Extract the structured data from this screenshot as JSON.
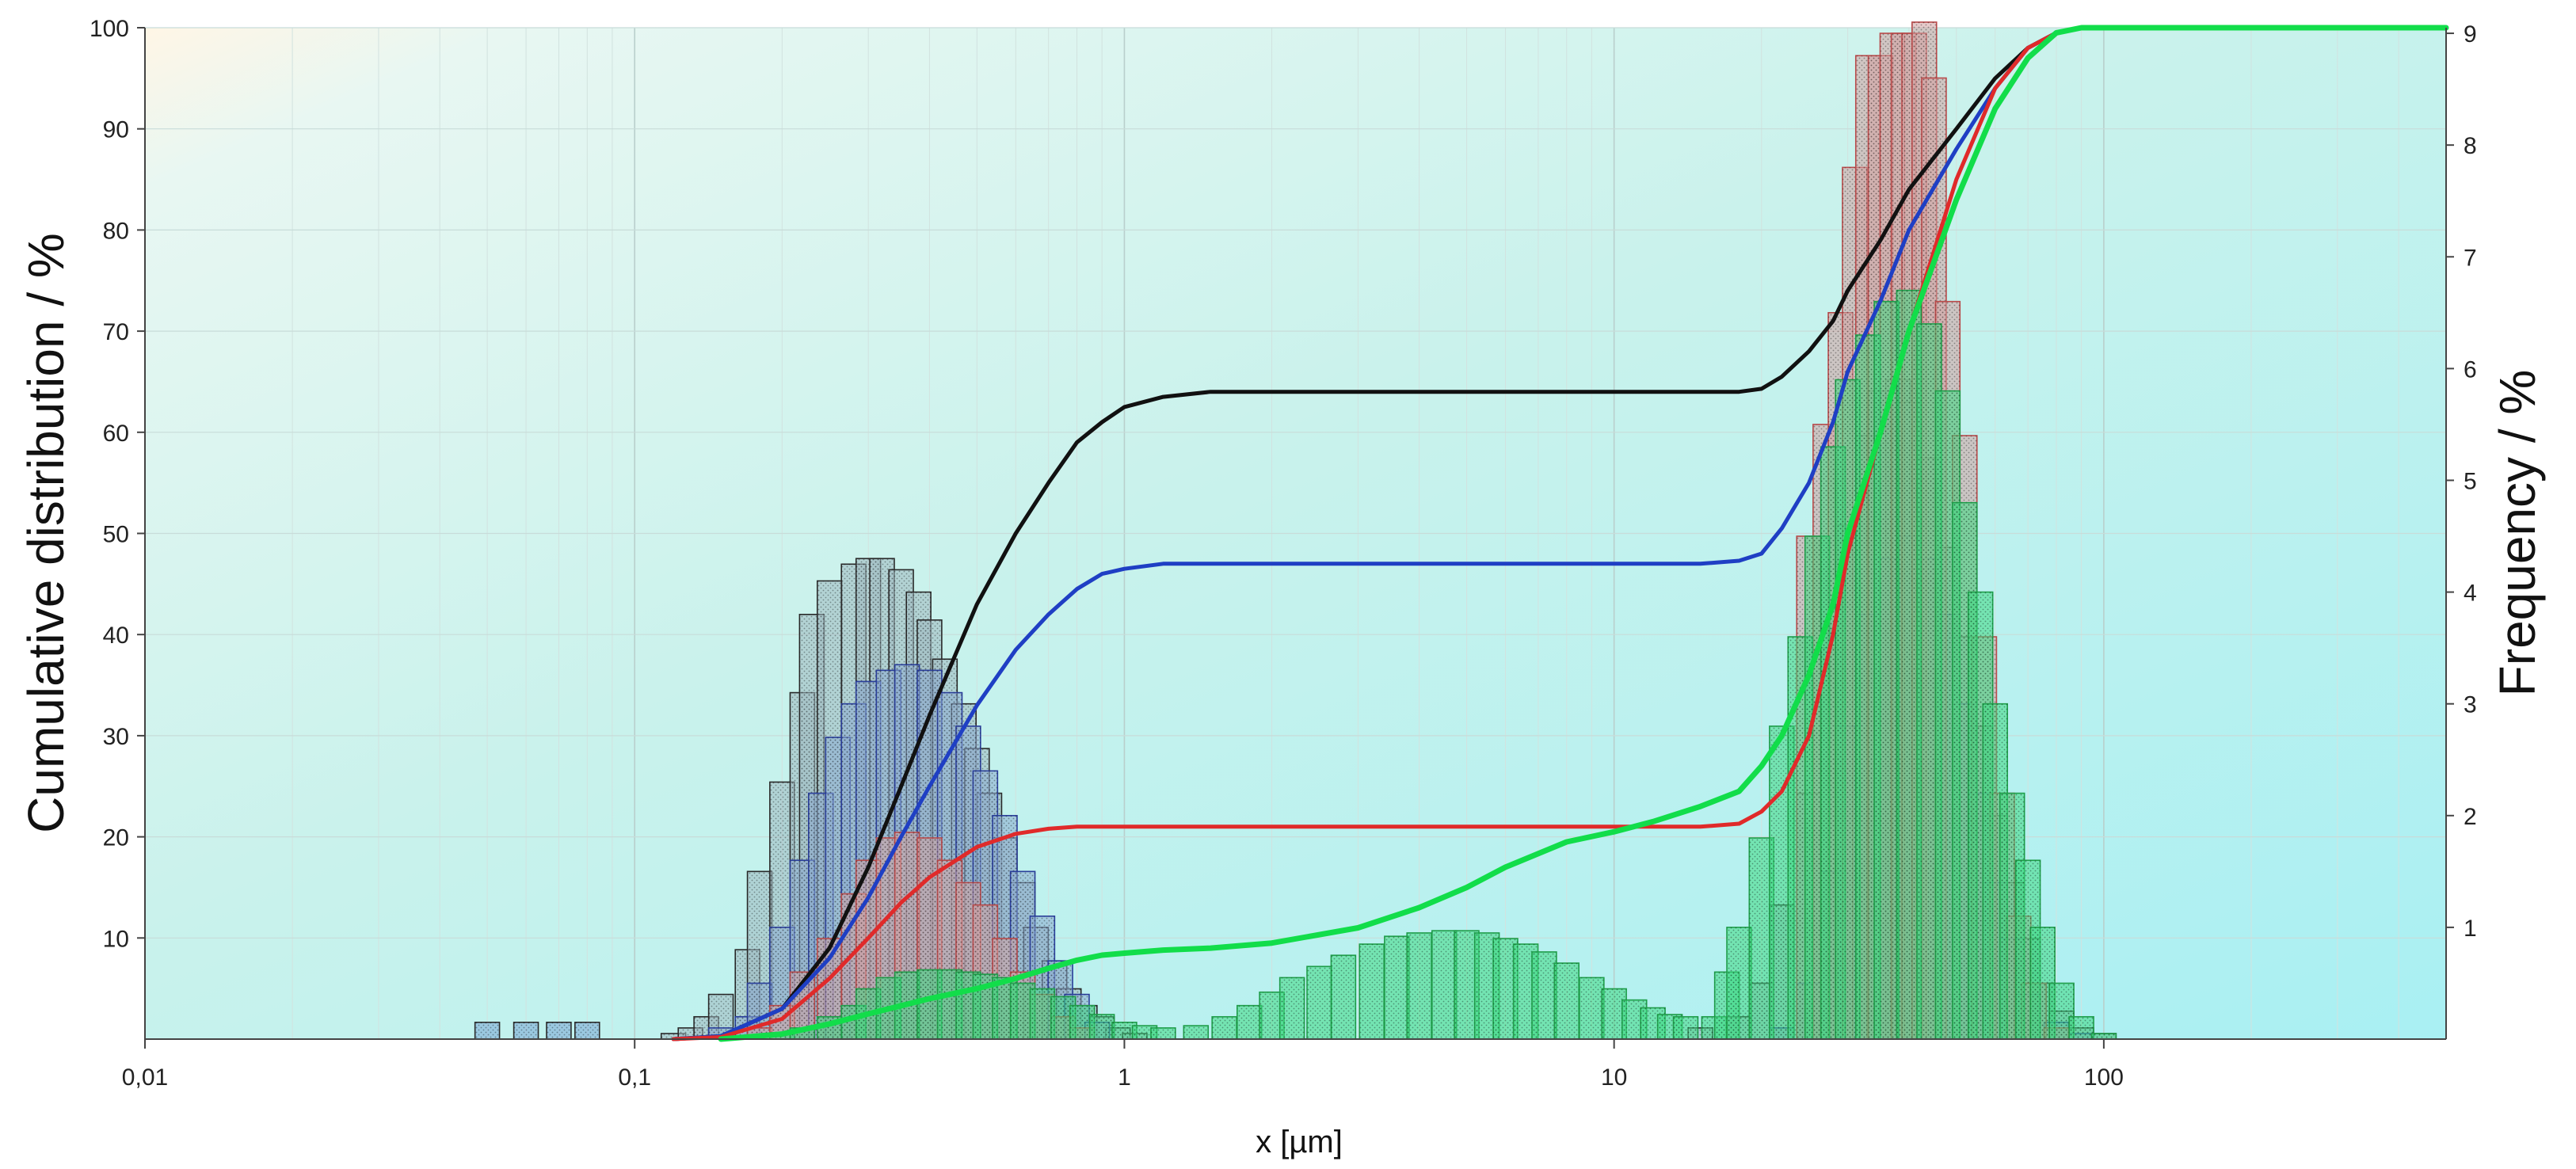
{
  "chart_data": {
    "type": "histogram+line",
    "xscale": "log",
    "xlim": [
      0.01,
      500
    ],
    "ylim_left": [
      0,
      100
    ],
    "ylim_right": [
      0,
      9.05
    ],
    "xlabel": "x [µm]",
    "ylabel_left": "Cumulative distribution / %",
    "ylabel_right": "Frequency / %",
    "x_ticks": [
      {
        "v": 0.01,
        "label": "0,01"
      },
      {
        "v": 0.1,
        "label": "0,1"
      },
      {
        "v": 1,
        "label": "1"
      },
      {
        "v": 10,
        "label": "10"
      },
      {
        "v": 100,
        "label": "100"
      }
    ],
    "y_left_ticks": [
      "10",
      "20",
      "30",
      "40",
      "50",
      "60",
      "70",
      "80",
      "90",
      "100"
    ],
    "y_right_ticks": [
      "1",
      "2",
      "3",
      "4",
      "5",
      "6",
      "7",
      "8",
      "9"
    ],
    "histogram_bins_per_decade": 20,
    "frequency_series": [
      {
        "name": "black",
        "color": "#2a2a2a",
        "fill": "#9fb8c0",
        "x": [
          0.12,
          0.13,
          0.14,
          0.15,
          0.17,
          0.18,
          0.2,
          0.22,
          0.23,
          0.25,
          0.28,
          0.3,
          0.32,
          0.35,
          0.38,
          0.4,
          0.43,
          0.47,
          0.5,
          0.53,
          0.57,
          0.62,
          0.66,
          0.72,
          0.77,
          0.83,
          0.9,
          0.97,
          1.05,
          15,
          18,
          20,
          22,
          25,
          28,
          30,
          33,
          35,
          38,
          40,
          44,
          48,
          52,
          56,
          60,
          65,
          70,
          75,
          82,
          90,
          100
        ],
        "y": [
          0.05,
          0.1,
          0.2,
          0.4,
          0.8,
          1.5,
          2.3,
          3.1,
          3.8,
          4.1,
          4.25,
          4.3,
          4.3,
          4.2,
          4.0,
          3.75,
          3.4,
          3.0,
          2.6,
          2.2,
          1.8,
          1.4,
          1.0,
          0.7,
          0.45,
          0.3,
          0.2,
          0.1,
          0.05,
          0.1,
          0.2,
          0.5,
          1.2,
          2.2,
          3.5,
          4.6,
          5.4,
          5.8,
          5.9,
          5.7,
          5.2,
          4.4,
          3.6,
          2.8,
          2.0,
          1.4,
          0.9,
          0.5,
          0.25,
          0.1,
          0.05
        ]
      },
      {
        "name": "blue",
        "color": "#2a3e9a",
        "fill": "#8aa9cf",
        "x": [
          0.15,
          0.17,
          0.18,
          0.2,
          0.22,
          0.24,
          0.26,
          0.28,
          0.3,
          0.33,
          0.36,
          0.4,
          0.44,
          0.48,
          0.52,
          0.57,
          0.62,
          0.68,
          0.74,
          0.8,
          0.88,
          22,
          25,
          28,
          30,
          33,
          36,
          40,
          44,
          48,
          52,
          56,
          60,
          65,
          70,
          80,
          90
        ],
        "y": [
          0.1,
          0.2,
          0.5,
          1.0,
          1.6,
          2.2,
          2.7,
          3.0,
          3.2,
          3.3,
          3.35,
          3.3,
          3.1,
          2.8,
          2.4,
          2.0,
          1.5,
          1.1,
          0.7,
          0.4,
          0.15,
          0.1,
          0.5,
          1.5,
          2.8,
          3.8,
          4.3,
          4.5,
          4.3,
          3.8,
          3.0,
          2.2,
          1.4,
          0.9,
          0.4,
          0.15,
          0.05
        ]
      },
      {
        "name": "red",
        "color": "#b84a4a",
        "fill": "#d4a0a0",
        "x": [
          0.18,
          0.2,
          0.22,
          0.25,
          0.28,
          0.3,
          0.33,
          0.36,
          0.4,
          0.44,
          0.48,
          0.52,
          0.57,
          0.62,
          0.68,
          0.75,
          0.82,
          25,
          27,
          29,
          31,
          33,
          35,
          37,
          39,
          41,
          43,
          45,
          48,
          52,
          57,
          62,
          67,
          72,
          80
        ],
        "y": [
          0.1,
          0.3,
          0.6,
          0.9,
          1.3,
          1.6,
          1.8,
          1.85,
          1.8,
          1.6,
          1.4,
          1.2,
          0.9,
          0.6,
          0.4,
          0.2,
          0.1,
          4.5,
          5.5,
          6.5,
          7.8,
          8.8,
          8.8,
          9.0,
          9.0,
          9.0,
          9.1,
          8.6,
          6.6,
          5.4,
          3.6,
          2.2,
          1.1,
          0.5,
          0.1
        ]
      },
      {
        "name": "green",
        "color": "#1f9e4a",
        "fill": "#3dd880",
        "x": [
          0.2,
          0.22,
          0.25,
          0.28,
          0.3,
          0.33,
          0.36,
          0.4,
          0.44,
          0.48,
          0.52,
          0.57,
          0.62,
          0.68,
          0.75,
          0.82,
          0.9,
          1.0,
          1.1,
          1.2,
          1.4,
          1.6,
          1.8,
          2.0,
          2.2,
          2.5,
          2.8,
          3.2,
          3.6,
          4.0,
          4.5,
          5.0,
          5.5,
          6.0,
          6.6,
          7.2,
          8.0,
          9.0,
          10,
          11,
          12,
          13,
          14,
          16,
          17,
          18,
          20,
          22,
          24,
          26,
          28,
          30,
          33,
          36,
          40,
          44,
          48,
          52,
          56,
          60,
          65,
          70,
          75,
          82,
          90,
          100
        ],
        "y": [
          0.05,
          0.1,
          0.2,
          0.3,
          0.45,
          0.55,
          0.6,
          0.62,
          0.62,
          0.6,
          0.58,
          0.55,
          0.5,
          0.45,
          0.38,
          0.3,
          0.22,
          0.15,
          0.12,
          0.1,
          0.12,
          0.2,
          0.3,
          0.42,
          0.55,
          0.65,
          0.75,
          0.85,
          0.92,
          0.95,
          0.97,
          0.97,
          0.95,
          0.9,
          0.85,
          0.78,
          0.68,
          0.55,
          0.45,
          0.35,
          0.28,
          0.22,
          0.2,
          0.2,
          0.6,
          1.0,
          1.8,
          2.8,
          3.6,
          4.5,
          5.3,
          5.9,
          6.3,
          6.6,
          6.7,
          6.4,
          5.8,
          4.8,
          4.0,
          3.0,
          2.2,
          1.6,
          1.0,
          0.5,
          0.2,
          0.05
        ]
      },
      {
        "name": "fine-tail",
        "color": "#2a2a2a",
        "fill": "#7aa6d6",
        "x": [
          0.05,
          0.06,
          0.07,
          0.08
        ],
        "y": [
          0.15,
          0.15,
          0.15,
          0.15
        ]
      }
    ],
    "cumulative_series": [
      {
        "name": "black",
        "color": "#111111",
        "width": 5,
        "x": [
          0.12,
          0.15,
          0.2,
          0.25,
          0.3,
          0.35,
          0.4,
          0.5,
          0.6,
          0.7,
          0.8,
          0.9,
          1.0,
          1.2,
          1.5,
          2,
          5,
          10,
          15,
          18,
          20,
          22,
          25,
          28,
          30,
          35,
          40,
          50,
          60,
          70,
          80,
          90,
          100,
          150,
          500
        ],
        "y": [
          0,
          0.3,
          3,
          9,
          17,
          25,
          32,
          43,
          50,
          55,
          59,
          61,
          62.5,
          63.5,
          64,
          64,
          64,
          64,
          64,
          64,
          64.3,
          65.5,
          68,
          71,
          74,
          79,
          84,
          90,
          95,
          98,
          99.5,
          100,
          100,
          100,
          100
        ]
      },
      {
        "name": "blue",
        "color": "#1f3fc4",
        "width": 5,
        "x": [
          0.12,
          0.15,
          0.2,
          0.25,
          0.3,
          0.35,
          0.4,
          0.5,
          0.6,
          0.7,
          0.8,
          0.9,
          1.0,
          1.2,
          1.5,
          2,
          5,
          10,
          15,
          18,
          20,
          22,
          25,
          28,
          30,
          35,
          40,
          50,
          60,
          70,
          80,
          90,
          100,
          150,
          500
        ],
        "y": [
          0,
          0.3,
          3,
          8,
          14,
          20,
          25,
          33,
          38.5,
          42,
          44.5,
          46,
          46.5,
          47,
          47,
          47,
          47,
          47,
          47,
          47.3,
          48,
          50.5,
          55,
          61,
          66,
          73,
          80,
          88,
          94,
          98,
          99.5,
          100,
          100,
          100,
          100
        ]
      },
      {
        "name": "red",
        "color": "#e02a2a",
        "width": 5,
        "x": [
          0.12,
          0.15,
          0.2,
          0.25,
          0.3,
          0.35,
          0.4,
          0.5,
          0.6,
          0.7,
          0.8,
          0.9,
          1.0,
          1.5,
          2,
          5,
          10,
          15,
          18,
          20,
          22,
          25,
          28,
          30,
          35,
          40,
          50,
          60,
          70,
          80,
          90,
          100,
          150,
          500
        ],
        "y": [
          0,
          0.2,
          2,
          6,
          10,
          13.5,
          16,
          19,
          20.3,
          20.8,
          21,
          21,
          21,
          21,
          21,
          21,
          21,
          21,
          21.3,
          22.5,
          24.5,
          30,
          40,
          48,
          60,
          70,
          85,
          94,
          98,
          99.5,
          100,
          100,
          100,
          100
        ]
      },
      {
        "name": "green",
        "color": "#12dd4a",
        "width": 7,
        "x": [
          0.15,
          0.2,
          0.25,
          0.3,
          0.4,
          0.5,
          0.6,
          0.7,
          0.8,
          0.9,
          1.0,
          1.2,
          1.5,
          2,
          3,
          4,
          5,
          6,
          8,
          10,
          12,
          15,
          18,
          20,
          22,
          25,
          28,
          30,
          35,
          40,
          50,
          60,
          70,
          80,
          90,
          100,
          150,
          500
        ],
        "y": [
          0,
          0.5,
          1.5,
          2.5,
          4,
          5,
          6,
          7,
          7.8,
          8.3,
          8.5,
          8.8,
          9,
          9.5,
          11,
          13,
          15,
          17,
          19.5,
          20.5,
          21.5,
          23,
          24.5,
          27,
          30,
          36,
          43,
          50,
          60,
          70,
          83,
          92,
          97,
          99.5,
          100,
          100,
          100,
          100
        ]
      }
    ]
  }
}
